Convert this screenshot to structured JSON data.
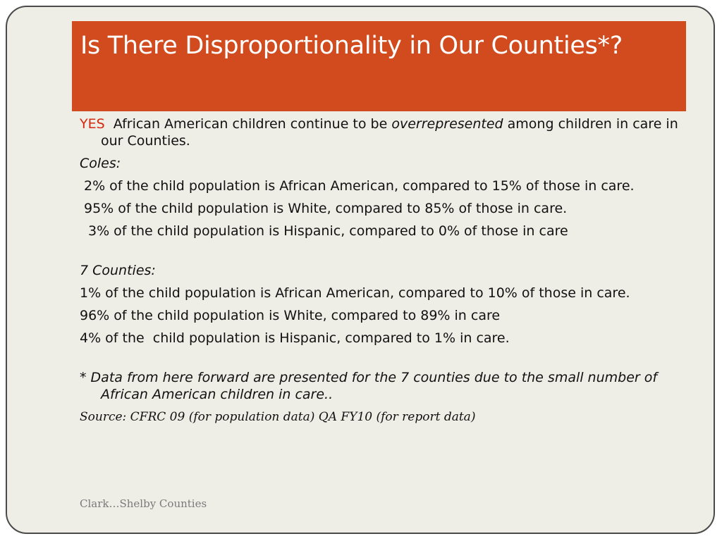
{
  "title": "Is There Disproportionality in Our Counties*?",
  "intro": {
    "yes": "YES",
    "text_before": "African American children continue to be",
    "emphasis": "overrepresented",
    "text_after": "among children in care in our Counties."
  },
  "coles": {
    "heading": "Coles:",
    "lines": [
      "2% of the child population is African American, compared to 15% of those in care.",
      "95% of the child population is White, compared to 85% of those in care.",
      "3% of the child population is Hispanic, compared to 0% of those in care"
    ]
  },
  "seven_counties": {
    "heading": "7 Counties:",
    "lines": [
      "1% of the child population is African American, compared to 10% of those in care.",
      "96% of the child population is White, compared to 89% in care",
      "4% of the  child population is Hispanic, compared to 1% in care."
    ]
  },
  "note": "* Data from here forward are presented for the 7 counties due to the small number of African American children in care..",
  "source": "Source: CFRC 09 (for population data) QA FY10 (for report data)",
  "footer": "Clark…Shelby Counties",
  "colors": {
    "title_bar": "#d14b1e",
    "yes_text": "#d42a10",
    "background": "#eeede6"
  }
}
